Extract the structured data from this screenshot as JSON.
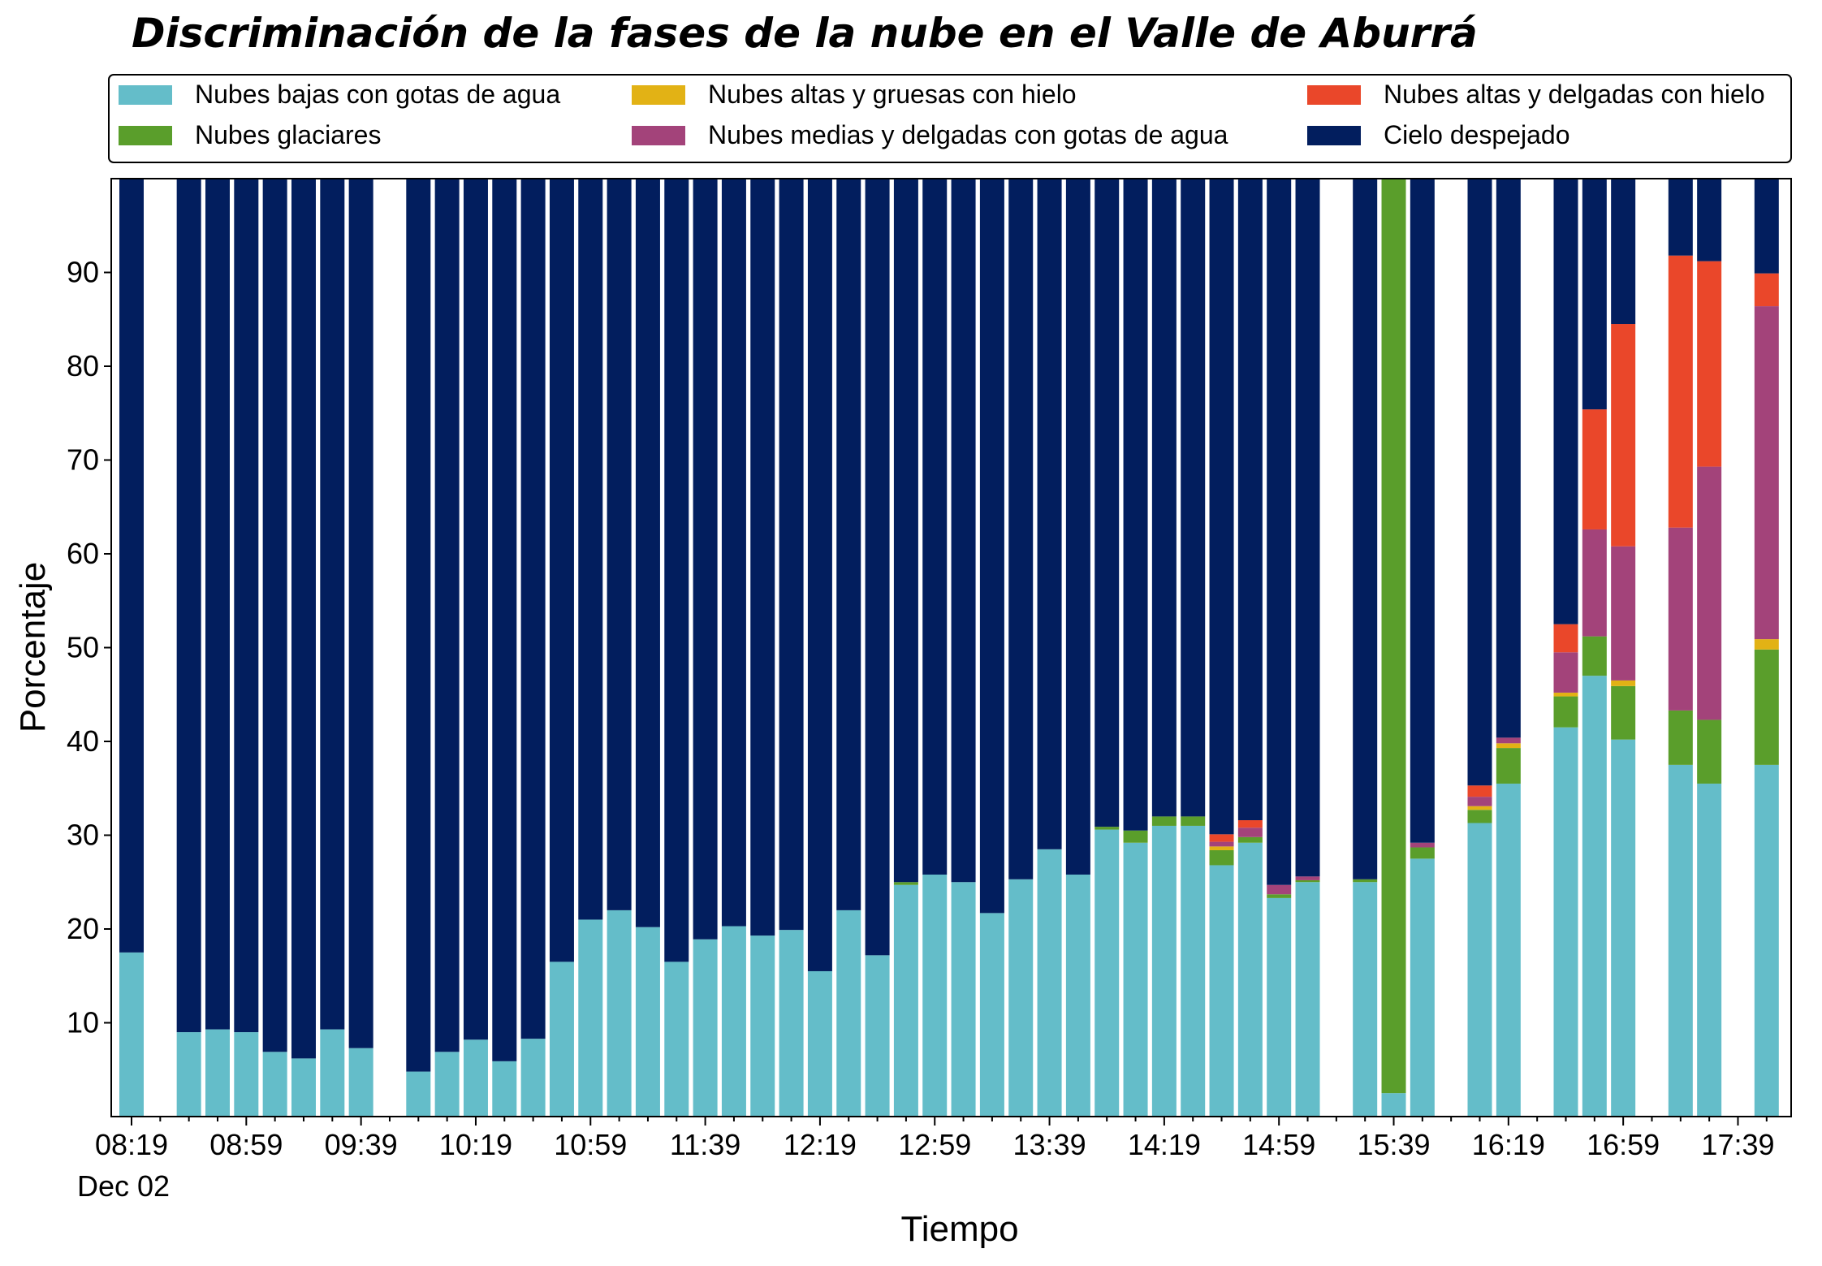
{
  "chart_data": {
    "type": "bar",
    "stacked": true,
    "title": "Discriminación de la fases de la nube en el Valle de Aburrá",
    "xlabel": "Tiempo",
    "ylabel": "Porcentaje",
    "ylim": [
      0,
      100
    ],
    "yticks": [
      10,
      20,
      30,
      40,
      50,
      60,
      70,
      80,
      90
    ],
    "x_start": "08:19",
    "x_interval_minutes": 10,
    "x_count": 59,
    "xtick_labels": [
      "08:19",
      "08:59",
      "09:39",
      "10:19",
      "10:59",
      "11:39",
      "12:19",
      "12:59",
      "13:39",
      "14:19",
      "14:59",
      "15:39",
      "16:19",
      "16:59",
      "17:39"
    ],
    "xtick_sublabel": "Dec 02",
    "grid": false,
    "legend_position": "top",
    "series": [
      {
        "name": "Nubes bajas con gotas de agua",
        "color": "#64bdc9",
        "values": [
          17.5,
          null,
          9.0,
          9.3,
          9.0,
          6.9,
          6.2,
          9.3,
          7.3,
          null,
          4.8,
          6.9,
          8.2,
          5.9,
          8.3,
          16.5,
          21.0,
          22.0,
          20.2,
          16.5,
          18.9,
          20.3,
          19.3,
          19.9,
          15.5,
          22.0,
          17.2,
          24.7,
          25.8,
          25.0,
          21.7,
          25.3,
          28.5,
          25.8,
          30.6,
          29.2,
          31.0,
          31.0,
          26.8,
          29.2,
          23.3,
          25.0,
          null,
          25.0,
          2.5,
          27.5,
          null,
          31.3,
          35.5,
          null,
          41.5,
          47.0,
          40.2,
          null,
          37.5,
          35.5,
          null,
          37.5,
          null
        ]
      },
      {
        "name": "Nubes glaciares",
        "color": "#5a9e2b",
        "values": [
          0,
          null,
          0,
          0,
          0,
          0,
          0,
          0,
          0,
          null,
          0,
          0,
          0,
          0,
          0,
          0,
          0,
          0,
          0,
          0,
          0,
          0,
          0,
          0,
          0,
          0,
          0,
          0.3,
          0,
          0,
          0,
          0,
          0,
          0,
          0.3,
          1.3,
          1.0,
          1.0,
          1.6,
          0.6,
          0.4,
          0.2,
          null,
          0.3,
          97.5,
          1.2,
          null,
          1.4,
          3.8,
          null,
          3.3,
          4.2,
          5.7,
          null,
          5.8,
          6.8,
          null,
          12.3,
          null
        ]
      },
      {
        "name": "Nubes altas y gruesas con hielo",
        "color": "#e2b215",
        "values": [
          0,
          null,
          0,
          0,
          0,
          0,
          0,
          0,
          0,
          null,
          0,
          0,
          0,
          0,
          0,
          0,
          0,
          0,
          0,
          0,
          0,
          0,
          0,
          0,
          0,
          0,
          0,
          0,
          0,
          0,
          0,
          0,
          0,
          0,
          0,
          0,
          0,
          0,
          0.4,
          0,
          0,
          0,
          null,
          0,
          0,
          0,
          null,
          0.4,
          0.5,
          null,
          0.4,
          0,
          0.6,
          null,
          0,
          0,
          null,
          1.1,
          null
        ]
      },
      {
        "name": "Nubes medias y delgadas con gotas de agua",
        "color": "#a3437a",
        "values": [
          0,
          null,
          0,
          0,
          0,
          0,
          0,
          0,
          0,
          null,
          0,
          0,
          0,
          0,
          0,
          0,
          0,
          0,
          0,
          0,
          0,
          0,
          0,
          0,
          0,
          0,
          0,
          0,
          0,
          0,
          0,
          0,
          0,
          0,
          0,
          0,
          0,
          0,
          0.5,
          1.0,
          1.0,
          0.4,
          null,
          0,
          0,
          0.5,
          null,
          1.0,
          0.6,
          null,
          4.3,
          11.4,
          14.3,
          null,
          19.5,
          27.0,
          null,
          35.5,
          null
        ]
      },
      {
        "name": "Nubes altas y delgadas con hielo",
        "color": "#ea472a",
        "values": [
          0,
          null,
          0,
          0,
          0,
          0,
          0,
          0,
          0,
          null,
          0,
          0,
          0,
          0,
          0,
          0,
          0,
          0,
          0,
          0,
          0,
          0,
          0,
          0,
          0,
          0,
          0,
          0,
          0,
          0,
          0,
          0,
          0,
          0,
          0,
          0,
          0,
          0,
          0.8,
          0.8,
          0,
          0,
          null,
          0,
          0,
          0,
          null,
          1.2,
          0,
          null,
          3.0,
          12.8,
          23.7,
          null,
          29.0,
          21.9,
          null,
          3.5,
          null
        ]
      },
      {
        "name": "Cielo despejado",
        "color": "#021e5e",
        "values": [
          82.5,
          null,
          91.0,
          90.7,
          91.0,
          93.1,
          93.8,
          90.7,
          92.7,
          null,
          95.2,
          93.1,
          91.8,
          94.1,
          91.7,
          83.5,
          79.0,
          78.0,
          79.8,
          83.5,
          81.1,
          79.7,
          80.7,
          80.1,
          84.5,
          78.0,
          82.8,
          75.0,
          74.2,
          75.0,
          78.3,
          74.7,
          71.5,
          74.2,
          69.1,
          69.5,
          68.0,
          68.0,
          69.9,
          68.4,
          75.3,
          74.4,
          null,
          74.7,
          0,
          70.8,
          null,
          64.7,
          59.6,
          null,
          47.5,
          24.6,
          15.5,
          null,
          8.2,
          8.8,
          null,
          10.1,
          null
        ]
      }
    ]
  }
}
